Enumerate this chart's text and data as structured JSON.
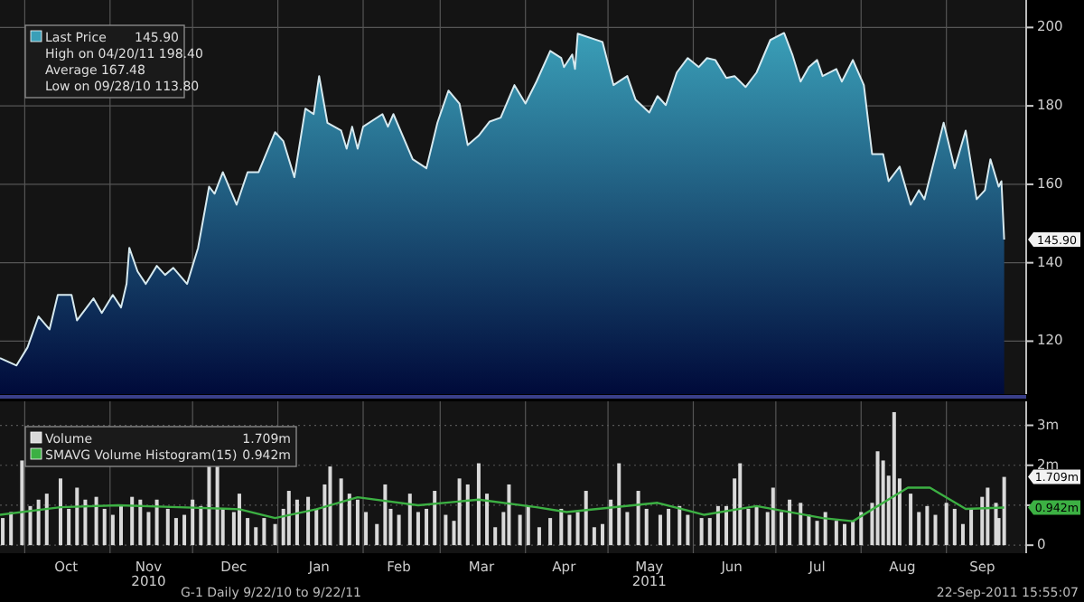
{
  "chart_data": [
    {
      "type": "area",
      "xlim": [
        "2010-09-22",
        "2011-09-30"
      ],
      "ylim": [
        106.5,
        207
      ],
      "yticks": [
        120,
        140,
        160,
        180,
        200
      ],
      "xticks": [
        {
          "value": "2010-10-01",
          "label": null
        },
        {
          "value": "2010-11-01",
          "label": null
        },
        {
          "value": "2010-12-01",
          "label": null
        },
        {
          "value": "2011-01-01",
          "label": null
        },
        {
          "value": "2011-02-01",
          "label": null
        },
        {
          "value": "2011-03-01",
          "label": null
        },
        {
          "value": "2011-04-01",
          "label": null
        },
        {
          "value": "2011-05-01",
          "label": null
        },
        {
          "value": "2011-06-01",
          "label": null
        },
        {
          "value": "2011-07-01",
          "label": null
        },
        {
          "value": "2011-08-01",
          "label": null
        },
        {
          "value": "2011-09-01",
          "label": null
        }
      ],
      "tick_labels": "y",
      "grid": true,
      "legend": "top left",
      "series": [
        {
          "name": "Last Price",
          "color": "#3a9fb8",
          "x": [
            "2010-09-22",
            "2010-09-28",
            "2010-10-02",
            "2010-10-06",
            "2010-10-10",
            "2010-10-13",
            "2010-10-18",
            "2010-10-20",
            "2010-10-26",
            "2010-10-29",
            "2010-11-02",
            "2010-11-05",
            "2010-11-07",
            "2010-11-08",
            "2010-11-11",
            "2010-11-14",
            "2010-11-18",
            "2010-11-21",
            "2010-11-24",
            "2010-11-29",
            "2010-12-03",
            "2010-12-07",
            "2010-12-09",
            "2010-12-12",
            "2010-12-17",
            "2010-12-21",
            "2010-12-25",
            "2010-12-31",
            "2011-01-03",
            "2011-01-07",
            "2011-01-11",
            "2011-01-14",
            "2011-01-16",
            "2011-01-19",
            "2011-01-24",
            "2011-01-26",
            "2011-01-28",
            "2011-01-30",
            "2011-02-01",
            "2011-02-08",
            "2011-02-10",
            "2011-02-12",
            "2011-02-19",
            "2011-02-24",
            "2011-02-28",
            "2011-03-04",
            "2011-03-08",
            "2011-03-11",
            "2011-03-15",
            "2011-03-19",
            "2011-03-23",
            "2011-03-28",
            "2011-04-01",
            "2011-04-05",
            "2011-04-10",
            "2011-04-14",
            "2011-04-15",
            "2011-04-18",
            "2011-04-19",
            "2011-04-20",
            "2011-04-29",
            "2011-05-03",
            "2011-05-08",
            "2011-05-11",
            "2011-05-16",
            "2011-05-19",
            "2011-05-22",
            "2011-05-26",
            "2011-05-30",
            "2011-06-03",
            "2011-06-06",
            "2011-06-09",
            "2011-06-13",
            "2011-06-16",
            "2011-06-20",
            "2011-06-24",
            "2011-06-29",
            "2011-07-04",
            "2011-07-07",
            "2011-07-10",
            "2011-07-13",
            "2011-07-16",
            "2011-07-18",
            "2011-07-23",
            "2011-07-25",
            "2011-07-29",
            "2011-08-02",
            "2011-08-05",
            "2011-08-09",
            "2011-08-11",
            "2011-08-15",
            "2011-08-19",
            "2011-08-22",
            "2011-08-24",
            "2011-08-31",
            "2011-09-04",
            "2011-09-08",
            "2011-09-12",
            "2011-09-15",
            "2011-09-17",
            "2011-09-20",
            "2011-09-21",
            "2011-09-22"
          ],
          "values": [
            115.7,
            113.8,
            118.4,
            126.3,
            123,
            131.8,
            131.8,
            125.3,
            130.9,
            127.2,
            131.8,
            128.6,
            134.6,
            143.8,
            137.8,
            134.6,
            139.2,
            136.9,
            138.7,
            134.6,
            143.8,
            159.4,
            157.6,
            163.1,
            154.8,
            163.1,
            163.1,
            173.3,
            171,
            161.8,
            179.3,
            177.9,
            187.6,
            175.7,
            173.7,
            169.1,
            174.7,
            169.1,
            174.7,
            177.9,
            174.7,
            177.9,
            166.4,
            164.1,
            175.7,
            183.9,
            180.6,
            170,
            172.4,
            176,
            177,
            185.3,
            180.6,
            186.2,
            194,
            192.2,
            189.9,
            193.1,
            189.4,
            198.4,
            196.3,
            185.3,
            187.6,
            181.6,
            178.3,
            182.5,
            180.2,
            188.5,
            192.2,
            189.9,
            192.2,
            191.7,
            187.1,
            187.6,
            184.8,
            188.5,
            196.8,
            198.6,
            193.1,
            186.2,
            189.9,
            191.7,
            187.6,
            189.4,
            186.2,
            191.7,
            185.3,
            167.7,
            167.7,
            160.8,
            164.5,
            154.8,
            158.5,
            156.2,
            175.7,
            164.1,
            173.7,
            156.2,
            158.5,
            166.4,
            159.4,
            160.8,
            145.9
          ]
        }
      ],
      "annotations": [
        "145.90",
        "High on 04/20/11 198.40",
        "Average 167.48",
        "Low on 09/28/10 113.80",
        {
          "text": "145.90",
          "x": "2011-09-22",
          "y": 145.9
        }
      ]
    },
    {
      "type": "bar",
      "xlim": [
        "2010-09-22",
        "2011-09-30"
      ],
      "ylim": [
        -0.2,
        3.6
      ],
      "yticks": [
        0,
        {
          "value": 1,
          "label": null
        },
        {
          "value": 2,
          "label": "2m"
        },
        {
          "value": 3,
          "label": "3m"
        }
      ],
      "xticks": [
        {
          "value": "2010-10-01",
          "label": null
        },
        {
          "value": "2010-10-16",
          "label": "Oct"
        },
        {
          "value": "2010-11-01",
          "label": null
        },
        {
          "value": "2010-11-15",
          "label": "Nov\n2010"
        },
        {
          "value": "2010-12-01",
          "label": null
        },
        {
          "value": "2010-12-16",
          "label": "Dec"
        },
        {
          "value": "2011-01-01",
          "label": null
        },
        {
          "value": "2011-01-16",
          "label": "Jan"
        },
        {
          "value": "2011-02-01",
          "label": null
        },
        {
          "value": "2011-02-14",
          "label": "Feb"
        },
        {
          "value": "2011-03-01",
          "label": null
        },
        {
          "value": "2011-03-16",
          "label": "Mar"
        },
        {
          "value": "2011-04-01",
          "label": null
        },
        {
          "value": "2011-04-15",
          "label": "Apr"
        },
        {
          "value": "2011-05-01",
          "label": null
        },
        {
          "value": "2011-05-16",
          "label": "May\n2011"
        },
        {
          "value": "2011-06-01",
          "label": null
        },
        {
          "value": "2011-06-15",
          "label": "Jun"
        },
        {
          "value": "2011-07-01",
          "label": null
        },
        {
          "value": "2011-07-16",
          "label": "Jul"
        },
        {
          "value": "2011-08-01",
          "label": null
        },
        {
          "value": "2011-08-16",
          "label": "Aug"
        },
        {
          "value": "2011-09-01",
          "label": null
        },
        {
          "value": "2011-09-14",
          "label": "Sep"
        }
      ],
      "grid": true,
      "legend": "top left",
      "series": [
        {
          "name": "Volume",
          "color": "#d9d9d9",
          "x": [
            "2010-09-23",
            "2010-09-26",
            "2010-09-30",
            "2010-10-03",
            "2010-10-06",
            "2010-10-09",
            "2010-10-14",
            "2010-10-17",
            "2010-10-20",
            "2010-10-23",
            "2010-10-27",
            "2010-10-30",
            "2010-11-02",
            "2010-11-05",
            "2010-11-09",
            "2010-11-12",
            "2010-11-15",
            "2010-11-18",
            "2010-11-22",
            "2010-11-25",
            "2010-11-28",
            "2010-12-01",
            "2010-12-04",
            "2010-12-07",
            "2010-12-10",
            "2010-12-12",
            "2010-12-16",
            "2010-12-18",
            "2010-12-21",
            "2010-12-24",
            "2010-12-27",
            "2010-12-31",
            "2011-01-03",
            "2011-01-05",
            "2011-01-08",
            "2011-01-12",
            "2011-01-15",
            "2011-01-18",
            "2011-01-20",
            "2011-01-24",
            "2011-01-27",
            "2011-01-30",
            "2011-02-02",
            "2011-02-06",
            "2011-02-09",
            "2011-02-11",
            "2011-02-14",
            "2011-02-18",
            "2011-02-21",
            "2011-02-24",
            "2011-02-27",
            "2011-03-03",
            "2011-03-06",
            "2011-03-08",
            "2011-03-11",
            "2011-03-15",
            "2011-03-18",
            "2011-03-21",
            "2011-03-24",
            "2011-03-26",
            "2011-03-30",
            "2011-04-02",
            "2011-04-06",
            "2011-04-10",
            "2011-04-14",
            "2011-04-17",
            "2011-04-20",
            "2011-04-23",
            "2011-04-26",
            "2011-04-29",
            "2011-05-02",
            "2011-05-05",
            "2011-05-08",
            "2011-05-12",
            "2011-05-15",
            "2011-05-20",
            "2011-05-23",
            "2011-05-27",
            "2011-05-30",
            "2011-06-04",
            "2011-06-07",
            "2011-06-10",
            "2011-06-13",
            "2011-06-16",
            "2011-06-18",
            "2011-06-21",
            "2011-06-24",
            "2011-06-28",
            "2011-06-30",
            "2011-07-03",
            "2011-07-06",
            "2011-07-10",
            "2011-07-13",
            "2011-07-16",
            "2011-07-19",
            "2011-07-23",
            "2011-07-26",
            "2011-07-29",
            "2011-08-01",
            "2011-08-05",
            "2011-08-07",
            "2011-08-09",
            "2011-08-11",
            "2011-08-13",
            "2011-08-15",
            "2011-08-19",
            "2011-08-22",
            "2011-08-25",
            "2011-08-28",
            "2011-09-01",
            "2011-09-04",
            "2011-09-07",
            "2011-09-10",
            "2011-09-14",
            "2011-09-16",
            "2011-09-19",
            "2011-09-20",
            "2011-09-22"
          ],
          "values": [
            0.68,
            0.83,
            2.12,
            0.98,
            1.14,
            1.29,
            1.67,
            0.91,
            1.44,
            1.14,
            1.21,
            0.91,
            0.76,
            0.98,
            1.21,
            1.14,
            0.83,
            1.14,
            0.91,
            0.68,
            0.76,
            1.14,
            0.98,
            2.05,
            2.05,
            0.91,
            0.83,
            1.29,
            0.68,
            0.45,
            0.68,
            0.53,
            0.91,
            1.36,
            1.14,
            1.21,
            0.91,
            1.52,
            1.97,
            1.67,
            1.29,
            1.14,
            0.83,
            0.53,
            1.52,
            0.91,
            0.76,
            1.29,
            0.83,
            0.91,
            1.36,
            0.76,
            0.61,
            1.67,
            1.52,
            2.05,
            1.29,
            0.45,
            0.83,
            1.52,
            0.76,
            0.98,
            0.45,
            0.68,
            0.91,
            0.76,
            0.83,
            1.36,
            0.45,
            0.53,
            1.14,
            2.05,
            0.83,
            1.36,
            0.91,
            0.76,
            0.91,
            0.98,
            0.76,
            0.68,
            0.68,
            0.98,
            0.98,
            1.67,
            2.05,
            0.91,
            0.98,
            0.83,
            1.44,
            0.83,
            1.14,
            1.06,
            0.76,
            0.61,
            0.83,
            0.61,
            0.53,
            0.61,
            0.83,
            1.06,
            2.35,
            2.12,
            1.74,
            3.33,
            1.67,
            1.29,
            0.83,
            0.98,
            0.76,
            1.06,
            0.91,
            0.53,
            0.91,
            1.21,
            1.44,
            1.06,
            0.68,
            1.709
          ]
        },
        {
          "name": "SMAVG Volume Histogram(15)",
          "type": "line",
          "color": "#3cb043",
          "x": [
            "2010-09-22",
            "2010-10-14",
            "2010-11-04",
            "2010-11-26",
            "2010-12-18",
            "2010-12-31",
            "2011-01-15",
            "2011-01-30",
            "2011-02-21",
            "2011-03-15",
            "2011-04-05",
            "2011-04-16",
            "2011-05-19",
            "2011-06-05",
            "2011-06-24",
            "2011-07-18",
            "2011-07-29",
            "2011-08-18",
            "2011-08-26",
            "2011-09-08",
            "2011-09-22"
          ],
          "values": [
            0.76,
            0.95,
            1.0,
            0.95,
            0.9,
            0.68,
            0.9,
            1.2,
            1.0,
            1.14,
            0.95,
            0.83,
            1.06,
            0.76,
            0.98,
            0.68,
            0.6,
            1.44,
            1.44,
            0.91,
            0.942
          ]
        }
      ],
      "annotations": [
        "1.709m",
        "0.942m",
        {
          "text": "1.709m",
          "x": "2011-09-22",
          "y": 1.709
        },
        {
          "text": "0.942m",
          "x": "2011-09-22",
          "y": 0.942
        },
        "G-1  Daily  9/22/10 to 9/22/11",
        "22-Sep-2011 15:55:07"
      ]
    }
  ]
}
